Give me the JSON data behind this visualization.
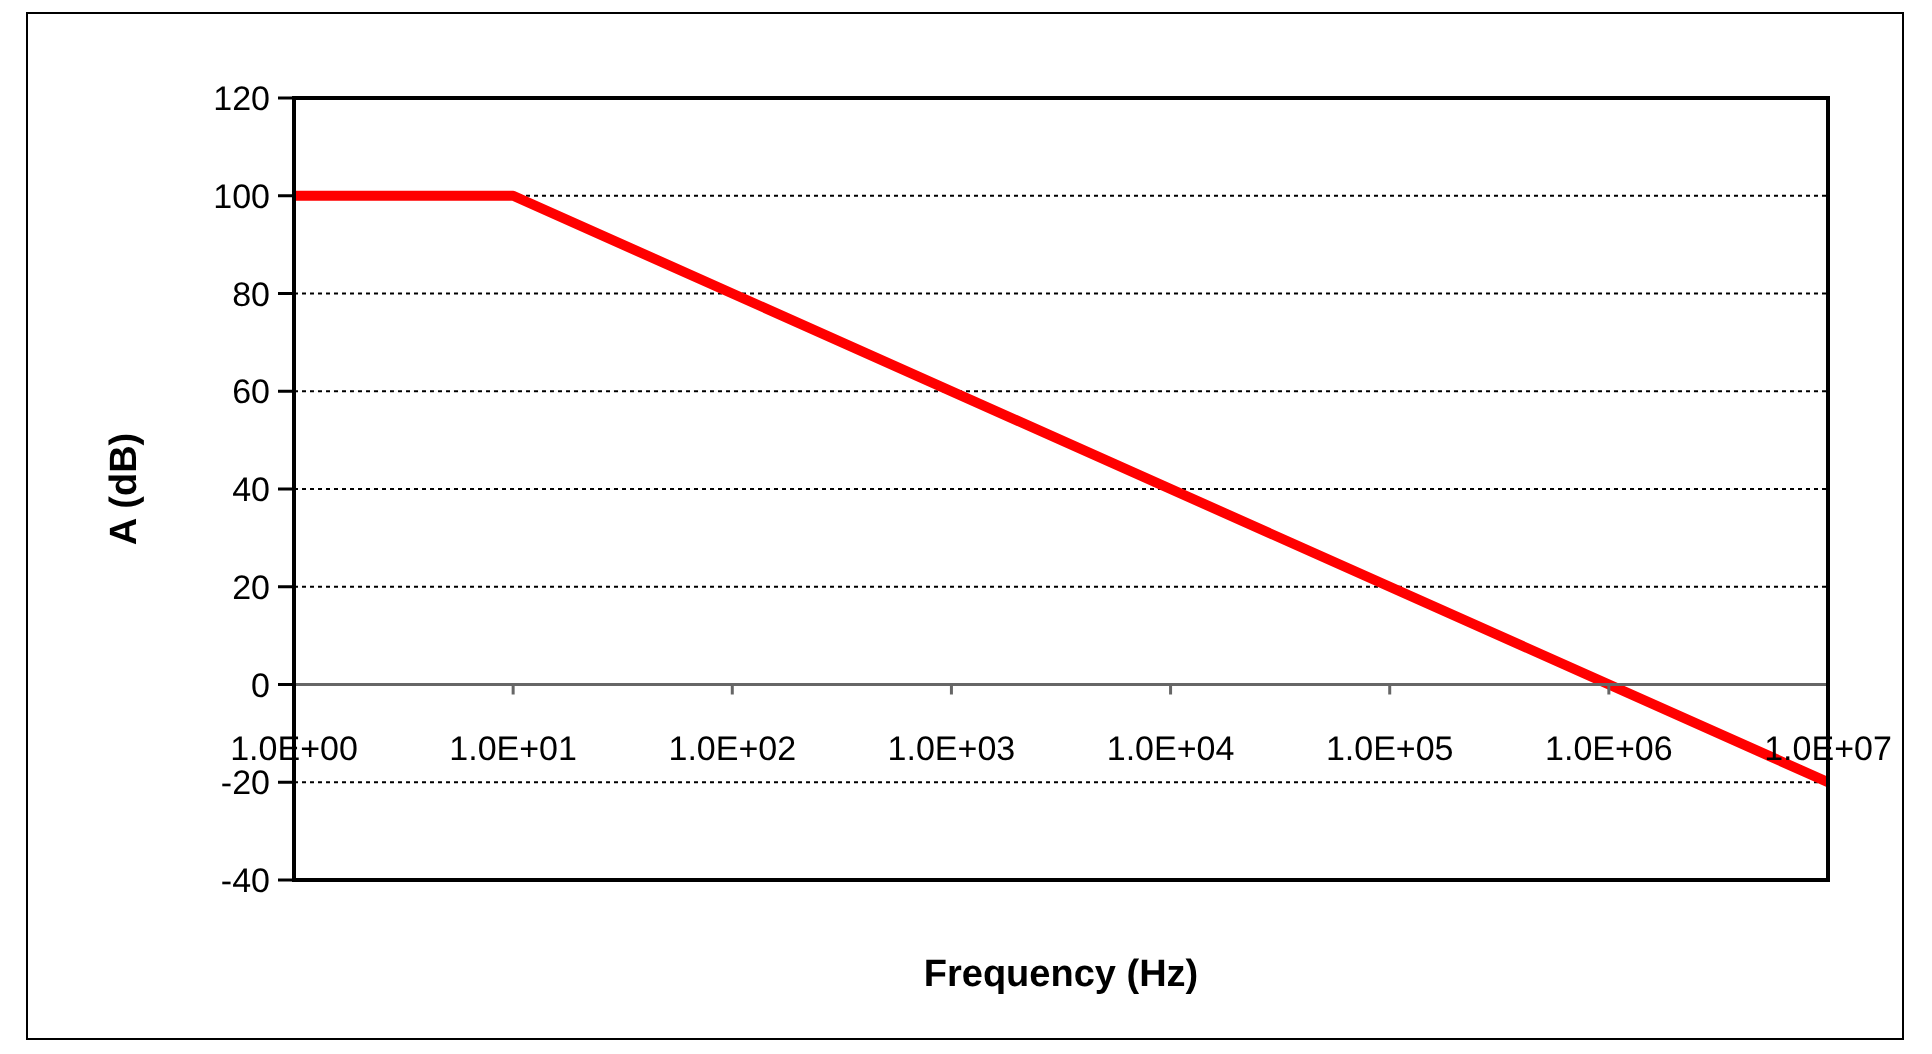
{
  "chart_data": {
    "type": "line",
    "xlabel": "Frequency (Hz)",
    "ylabel": "A (dB)",
    "x": [
      1,
      10,
      10000000
    ],
    "values": [
      100,
      100,
      -20
    ],
    "color": "#ff0000",
    "log": "x",
    "xlim": [
      1,
      10000000
    ],
    "xticks": [
      {
        "value": 1,
        "label": "1.0E+00"
      },
      {
        "value": 10,
        "label": "1.0E+01"
      },
      {
        "value": 100,
        "label": "1.0E+02"
      },
      {
        "value": 1000,
        "label": "1.0E+03"
      },
      {
        "value": 10000,
        "label": "1.0E+04"
      },
      {
        "value": 100000,
        "label": "1.0E+05"
      },
      {
        "value": 1000000,
        "label": "1.0E+06"
      },
      {
        "value": 10000000,
        "label": "1.0E+07"
      }
    ],
    "ylim": [
      -40,
      120
    ],
    "yticks": [
      -40,
      -20,
      0,
      20,
      40,
      60,
      80,
      100,
      120
    ],
    "grid": "y",
    "marker": "none",
    "line_style": "solid"
  }
}
